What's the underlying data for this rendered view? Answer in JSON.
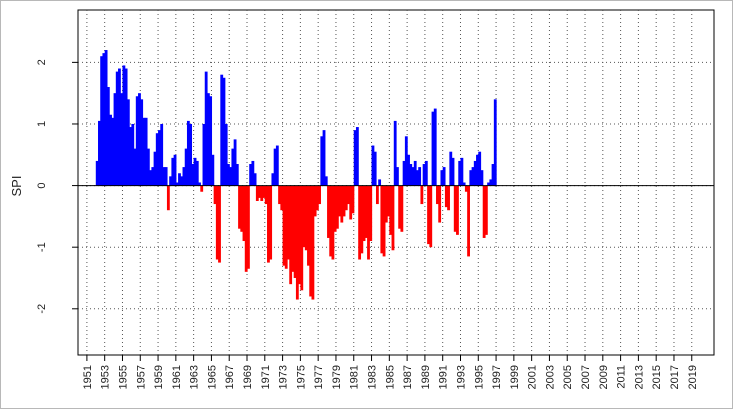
{
  "chart_data": {
    "type": "bar",
    "ylabel": "SPI",
    "xlabel": "",
    "title": "",
    "x_range": [
      1950.0,
      2021.5
    ],
    "ylim": [
      -2.75,
      2.85
    ],
    "y_ticks": [
      -2,
      -1,
      0,
      1,
      2
    ],
    "y_tick_labels": [
      "-2",
      "-1",
      "0",
      "1",
      "2"
    ],
    "x_ticks": [
      1951,
      1953,
      1955,
      1957,
      1959,
      1961,
      1963,
      1965,
      1967,
      1969,
      1971,
      1973,
      1975,
      1977,
      1979,
      1981,
      1983,
      1985,
      1987,
      1989,
      1991,
      1993,
      1995,
      1997,
      1999,
      2001,
      2003,
      2005,
      2007,
      2009,
      2011,
      2013,
      2015,
      2017,
      2019
    ],
    "x_tick_labels": [
      "1951",
      "1953",
      "1955",
      "1957",
      "1959",
      "1961",
      "1963",
      "1965",
      "1967",
      "1969",
      "1971",
      "1973",
      "1975",
      "1977",
      "1979",
      "1981",
      "1983",
      "1985",
      "1987",
      "1989",
      "1991",
      "1993",
      "1995",
      "1997",
      "1999",
      "2001",
      "2003",
      "2005",
      "2007",
      "2009",
      "2011",
      "2013",
      "2015",
      "2017",
      "2019"
    ],
    "grid": true,
    "colors": {
      "positive": "#0000ff",
      "negative": "#ff0000",
      "zero_line": "#000000",
      "grid": "#555555"
    },
    "series": [
      {
        "values": [
          [
            1952.0,
            0.4
          ],
          [
            1952.25,
            1.05
          ],
          [
            1952.5,
            2.1
          ],
          [
            1952.75,
            2.15
          ],
          [
            1953.0,
            2.2
          ],
          [
            1953.25,
            1.6
          ],
          [
            1953.5,
            1.15
          ],
          [
            1953.75,
            1.1
          ],
          [
            1954.0,
            1.5
          ],
          [
            1954.25,
            1.85
          ],
          [
            1954.5,
            1.9
          ],
          [
            1954.75,
            1.5
          ],
          [
            1955.0,
            1.95
          ],
          [
            1955.25,
            1.9
          ],
          [
            1955.5,
            1.4
          ],
          [
            1955.75,
            0.95
          ],
          [
            1956.0,
            1.0
          ],
          [
            1956.25,
            0.6
          ],
          [
            1956.5,
            1.45
          ],
          [
            1956.75,
            1.5
          ],
          [
            1957.0,
            1.4
          ],
          [
            1957.25,
            1.1
          ],
          [
            1957.5,
            1.1
          ],
          [
            1957.75,
            0.6
          ],
          [
            1958.0,
            0.25
          ],
          [
            1958.25,
            0.3
          ],
          [
            1958.5,
            0.55
          ],
          [
            1958.75,
            0.85
          ],
          [
            1959.0,
            0.9
          ],
          [
            1959.25,
            1.0
          ],
          [
            1959.5,
            0.3
          ],
          [
            1959.75,
            0.3
          ],
          [
            1960.0,
            -0.4
          ],
          [
            1960.25,
            0.15
          ],
          [
            1960.5,
            0.45
          ],
          [
            1960.75,
            0.5
          ],
          [
            1961.0,
            0.05
          ],
          [
            1961.25,
            0.2
          ],
          [
            1961.5,
            0.15
          ],
          [
            1961.75,
            0.3
          ],
          [
            1962.0,
            0.6
          ],
          [
            1962.25,
            1.05
          ],
          [
            1962.5,
            1.0
          ],
          [
            1962.75,
            0.35
          ],
          [
            1963.0,
            0.45
          ],
          [
            1963.25,
            0.4
          ],
          [
            1963.5,
            0.05
          ],
          [
            1963.75,
            -0.1
          ],
          [
            1964.0,
            1.0
          ],
          [
            1964.25,
            1.85
          ],
          [
            1964.5,
            1.5
          ],
          [
            1964.75,
            1.45
          ],
          [
            1965.0,
            0.5
          ],
          [
            1965.25,
            -0.3
          ],
          [
            1965.5,
            -1.2
          ],
          [
            1965.75,
            -1.25
          ],
          [
            1966.0,
            1.8
          ],
          [
            1966.25,
            1.75
          ],
          [
            1966.5,
            1.0
          ],
          [
            1966.75,
            0.35
          ],
          [
            1967.0,
            0.3
          ],
          [
            1967.25,
            0.6
          ],
          [
            1967.5,
            0.75
          ],
          [
            1967.75,
            0.35
          ],
          [
            1968.0,
            -0.7
          ],
          [
            1968.25,
            -0.75
          ],
          [
            1968.5,
            -0.9
          ],
          [
            1968.75,
            -1.4
          ],
          [
            1969.0,
            -1.35
          ],
          [
            1969.25,
            0.35
          ],
          [
            1969.5,
            0.4
          ],
          [
            1969.75,
            0.2
          ],
          [
            1970.0,
            -0.25
          ],
          [
            1970.25,
            -0.2
          ],
          [
            1970.5,
            -0.25
          ],
          [
            1970.75,
            -0.2
          ],
          [
            1971.0,
            -0.3
          ],
          [
            1971.25,
            -1.25
          ],
          [
            1971.5,
            -1.2
          ],
          [
            1971.75,
            0.2
          ],
          [
            1972.0,
            0.6
          ],
          [
            1972.25,
            0.65
          ],
          [
            1972.5,
            -0.3
          ],
          [
            1972.75,
            -0.4
          ],
          [
            1973.0,
            -1.3
          ],
          [
            1973.25,
            -1.35
          ],
          [
            1973.5,
            -1.2
          ],
          [
            1973.75,
            -1.6
          ],
          [
            1974.0,
            -1.4
          ],
          [
            1974.25,
            -1.5
          ],
          [
            1974.5,
            -1.85
          ],
          [
            1974.75,
            -1.6
          ],
          [
            1975.0,
            -1.7
          ],
          [
            1975.25,
            -1.0
          ],
          [
            1975.5,
            -1.05
          ],
          [
            1975.75,
            -1.3
          ],
          [
            1976.0,
            -1.8
          ],
          [
            1976.25,
            -1.85
          ],
          [
            1976.5,
            -0.5
          ],
          [
            1976.75,
            -0.4
          ],
          [
            1977.0,
            -0.3
          ],
          [
            1977.25,
            0.8
          ],
          [
            1977.5,
            0.9
          ],
          [
            1977.75,
            0.15
          ],
          [
            1978.0,
            -0.85
          ],
          [
            1978.25,
            -1.15
          ],
          [
            1978.5,
            -1.2
          ],
          [
            1978.75,
            -0.75
          ],
          [
            1979.0,
            -0.7
          ],
          [
            1979.25,
            -0.5
          ],
          [
            1979.5,
            -0.6
          ],
          [
            1979.75,
            -0.5
          ],
          [
            1980.0,
            -0.4
          ],
          [
            1980.25,
            -0.3
          ],
          [
            1980.5,
            -0.55
          ],
          [
            1980.75,
            -0.45
          ],
          [
            1981.0,
            0.9
          ],
          [
            1981.25,
            0.95
          ],
          [
            1981.5,
            -1.2
          ],
          [
            1981.75,
            -1.1
          ],
          [
            1982.0,
            -0.9
          ],
          [
            1982.25,
            -0.85
          ],
          [
            1982.5,
            -1.2
          ],
          [
            1982.75,
            -0.9
          ],
          [
            1983.0,
            0.65
          ],
          [
            1983.25,
            0.55
          ],
          [
            1983.5,
            -0.3
          ],
          [
            1983.75,
            0.1
          ],
          [
            1984.0,
            -1.1
          ],
          [
            1984.25,
            -1.15
          ],
          [
            1984.5,
            -0.6
          ],
          [
            1984.75,
            -0.5
          ],
          [
            1985.0,
            -0.8
          ],
          [
            1985.25,
            -1.05
          ],
          [
            1985.5,
            1.05
          ],
          [
            1985.75,
            0.3
          ],
          [
            1986.0,
            -0.7
          ],
          [
            1986.25,
            -0.75
          ],
          [
            1986.5,
            0.4
          ],
          [
            1986.75,
            0.8
          ],
          [
            1987.0,
            0.5
          ],
          [
            1987.25,
            0.35
          ],
          [
            1987.5,
            0.3
          ],
          [
            1987.75,
            0.4
          ],
          [
            1988.0,
            0.25
          ],
          [
            1988.25,
            0.3
          ],
          [
            1988.5,
            -0.3
          ],
          [
            1988.75,
            0.35
          ],
          [
            1989.0,
            0.4
          ],
          [
            1989.25,
            -0.95
          ],
          [
            1989.5,
            -1.0
          ],
          [
            1989.75,
            1.2
          ],
          [
            1990.0,
            1.25
          ],
          [
            1990.25,
            -0.3
          ],
          [
            1990.5,
            -0.6
          ],
          [
            1990.75,
            0.25
          ],
          [
            1991.0,
            0.3
          ],
          [
            1991.25,
            -0.35
          ],
          [
            1991.5,
            -0.4
          ],
          [
            1991.75,
            0.55
          ],
          [
            1992.0,
            0.45
          ],
          [
            1992.25,
            -0.75
          ],
          [
            1992.5,
            -0.8
          ],
          [
            1992.75,
            0.4
          ],
          [
            1993.0,
            0.45
          ],
          [
            1993.25,
            0.05
          ],
          [
            1993.5,
            -0.1
          ],
          [
            1993.75,
            -1.15
          ],
          [
            1994.0,
            0.25
          ],
          [
            1994.25,
            0.3
          ],
          [
            1994.5,
            0.4
          ],
          [
            1994.75,
            0.5
          ],
          [
            1995.0,
            0.55
          ],
          [
            1995.25,
            0.25
          ],
          [
            1995.5,
            -0.85
          ],
          [
            1995.75,
            -0.8
          ],
          [
            1996.0,
            0.05
          ],
          [
            1996.25,
            0.1
          ],
          [
            1996.5,
            0.35
          ],
          [
            1996.75,
            1.4
          ]
        ]
      }
    ]
  }
}
